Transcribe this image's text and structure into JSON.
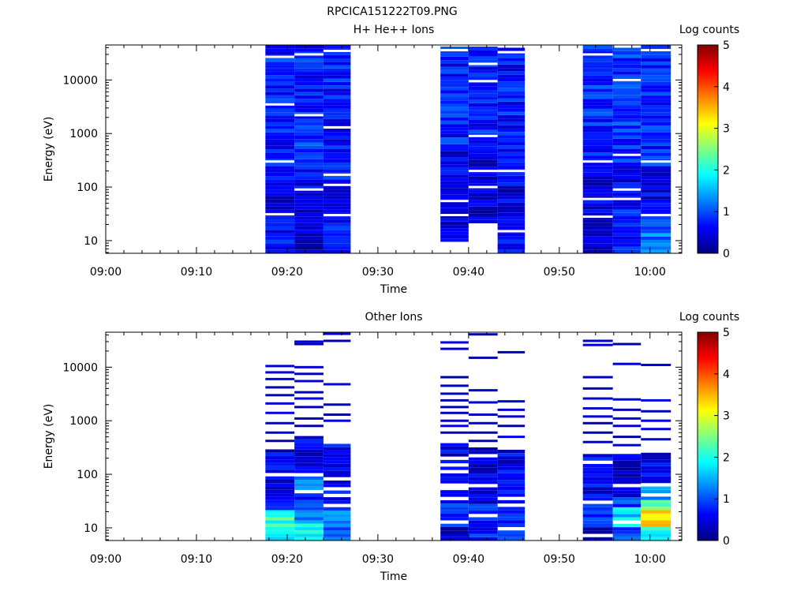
{
  "figure_title": "RPCICA151222T09.PNG",
  "colors": {
    "colormap": [
      "#00007f",
      "#0000ff",
      "#0080ff",
      "#00ffff",
      "#80ff80",
      "#ffff00",
      "#ff8000",
      "#ff0000",
      "#7f0000"
    ],
    "background": "#ffffff",
    "axis": "#000000"
  },
  "chart_data": [
    {
      "type": "heatmap",
      "title": "H+ He++ Ions",
      "xlabel": "Time",
      "ylabel": "Energy (eV)",
      "x_ticks": [
        "09:00",
        "09:10",
        "09:20",
        "09:30",
        "09:40",
        "09:50",
        "10:00"
      ],
      "x_range_minutes": [
        0,
        63.5
      ],
      "y_scale": "log",
      "y_range": [
        5.8,
        45000
      ],
      "y_ticks": [
        10,
        100,
        1000,
        10000
      ],
      "y_tick_labels": [
        "10",
        "100",
        "1000",
        "10000"
      ],
      "colorbar": {
        "label": "Log counts",
        "range": [
          0,
          5
        ],
        "ticks": [
          "0",
          "1",
          "2",
          "3",
          "4",
          "5"
        ]
      },
      "columns": [
        {
          "start_min": 17.6,
          "end_min": 20.8,
          "e_min": 5.8,
          "e_max": 45000,
          "bands": [
            {
              "lo": 5.8,
              "hi": 30,
              "level": 0.6
            },
            {
              "lo": 30,
              "hi": 100,
              "level": 0.4
            },
            {
              "lo": 100,
              "hi": 3000,
              "level": 0.7
            },
            {
              "lo": 3000,
              "hi": 45000,
              "level": 0.8
            }
          ],
          "gaps": [
            31,
            300,
            3500,
            27000
          ]
        },
        {
          "start_min": 20.8,
          "end_min": 24.0,
          "e_min": 5.8,
          "e_max": 45000,
          "bands": [
            {
              "lo": 5.8,
              "hi": 35,
              "level": 0.4
            },
            {
              "lo": 35,
              "hi": 150,
              "level": 0.5
            },
            {
              "lo": 150,
              "hi": 3000,
              "level": 0.8
            },
            {
              "lo": 3000,
              "hi": 45000,
              "level": 0.7
            }
          ],
          "gaps": [
            90,
            2200,
            30000
          ]
        },
        {
          "start_min": 24.0,
          "end_min": 27.0,
          "e_min": 5.8,
          "e_max": 45000,
          "bands": [
            {
              "lo": 5.8,
              "hi": 30,
              "level": 0.7
            },
            {
              "lo": 30,
              "hi": 130,
              "level": 0.5
            },
            {
              "lo": 130,
              "hi": 45000,
              "level": 0.7
            }
          ],
          "gaps": [
            30,
            110,
            170,
            1300,
            35000
          ]
        },
        {
          "start_min": 36.9,
          "end_min": 40.0,
          "e_min": 9.5,
          "e_max": 42000,
          "bands": [
            {
              "lo": 9.5,
              "hi": 60,
              "level": 0.5
            },
            {
              "lo": 60,
              "hi": 500,
              "level": 0.5
            },
            {
              "lo": 500,
              "hi": 42000,
              "level": 0.75
            }
          ],
          "gaps": [
            30,
            55,
            36000
          ]
        },
        {
          "start_min": 40.0,
          "end_min": 43.2,
          "e_min": 5.8,
          "e_max": 42000,
          "bands": [
            {
              "lo": 5.8,
              "hi": 22,
              "level": 0.0
            },
            {
              "lo": 22,
              "hi": 300,
              "level": 0.4
            },
            {
              "lo": 300,
              "hi": 42000,
              "level": 0.75
            }
          ],
          "gaps": [
            100,
            200,
            900,
            9500,
            20000
          ],
          "blank": [
            [
              5.8,
              22
            ]
          ]
        },
        {
          "start_min": 43.2,
          "end_min": 46.2,
          "e_min": 5.8,
          "e_max": 40000,
          "bands": [
            {
              "lo": 5.8,
              "hi": 60,
              "level": 0.55
            },
            {
              "lo": 60,
              "hi": 400,
              "level": 0.5
            },
            {
              "lo": 400,
              "hi": 40000,
              "level": 0.7
            }
          ],
          "gaps": [
            15,
            200,
            33000
          ]
        },
        {
          "start_min": 52.6,
          "end_min": 55.9,
          "e_min": 5.8,
          "e_max": 45000,
          "bands": [
            {
              "lo": 5.8,
              "hi": 25,
              "level": 0.5
            },
            {
              "lo": 25,
              "hi": 250,
              "level": 0.5
            },
            {
              "lo": 250,
              "hi": 45000,
              "level": 0.8
            }
          ],
          "gaps": [
            28,
            60,
            300,
            30000
          ]
        },
        {
          "start_min": 55.9,
          "end_min": 59.0,
          "e_min": 5.8,
          "e_max": 40000,
          "bands": [
            {
              "lo": 5.8,
              "hi": 40,
              "level": 0.7
            },
            {
              "lo": 40,
              "hi": 250,
              "level": 0.5
            },
            {
              "lo": 250,
              "hi": 40000,
              "level": 0.85
            }
          ],
          "gaps": [
            60,
            90,
            400,
            10000
          ]
        },
        {
          "start_min": 59.0,
          "end_min": 62.3,
          "e_min": 5.8,
          "e_max": 45000,
          "bands": [
            {
              "lo": 5.8,
              "hi": 30,
              "level": 1.2
            },
            {
              "lo": 30,
              "hi": 250,
              "level": 0.6
            },
            {
              "lo": 250,
              "hi": 45000,
              "level": 0.8
            }
          ],
          "gaps": [
            30,
            300,
            36000
          ]
        }
      ]
    },
    {
      "type": "heatmap",
      "title": "Other Ions",
      "xlabel": "Time",
      "ylabel": "Energy (eV)",
      "x_ticks": [
        "09:00",
        "09:10",
        "09:20",
        "09:30",
        "09:40",
        "09:50",
        "10:00"
      ],
      "x_range_minutes": [
        0,
        63.5
      ],
      "y_scale": "log",
      "y_range": [
        5.8,
        45000
      ],
      "y_ticks": [
        10,
        100,
        1000,
        10000
      ],
      "y_tick_labels": [
        "10",
        "100",
        "1000",
        "10000"
      ],
      "colorbar": {
        "label": "Log counts",
        "range": [
          0,
          5
        ],
        "ticks": [
          "0",
          "1",
          "2",
          "3",
          "4",
          "5"
        ]
      },
      "columns": [
        {
          "start_min": 17.6,
          "end_min": 20.8,
          "e_min": 5.8,
          "e_max": 11000,
          "bands": [
            {
              "lo": 5.8,
              "hi": 10,
              "level": 1.7
            },
            {
              "lo": 10,
              "hi": 20,
              "level": 2.1
            },
            {
              "lo": 20,
              "hi": 35,
              "level": 0.9
            },
            {
              "lo": 35,
              "hi": 300,
              "level": 0.5
            }
          ],
          "dense_max": 300,
          "sparse": [
            420,
            600,
            900,
            1400,
            2100,
            3000,
            4200,
            6000,
            8000,
            10500
          ]
        },
        {
          "start_min": 20.8,
          "end_min": 24.0,
          "e_min": 5.8,
          "e_max": 30000,
          "bands": [
            {
              "lo": 5.8,
              "hi": 12,
              "level": 1.8
            },
            {
              "lo": 12,
              "hi": 22,
              "level": 1.3
            },
            {
              "lo": 22,
              "hi": 45,
              "level": 0.8
            },
            {
              "lo": 45,
              "hi": 100,
              "level": 1.4
            },
            {
              "lo": 100,
              "hi": 500,
              "level": 0.5
            }
          ],
          "dense_max": 500,
          "sparse": [
            800,
            1100,
            1800,
            2600,
            3400,
            5500,
            7500,
            10000,
            27000,
            30000
          ]
        },
        {
          "start_min": 24.0,
          "end_min": 27.0,
          "e_min": 5.8,
          "e_max": 42000,
          "bands": [
            {
              "lo": 5.8,
              "hi": 20,
              "level": 1.2
            },
            {
              "lo": 20,
              "hi": 60,
              "level": 0.7
            },
            {
              "lo": 60,
              "hi": 700,
              "level": 0.6
            }
          ],
          "dense_max": 700,
          "sparse": [
            1000,
            1300,
            2000,
            4800,
            31000,
            42000
          ]
        },
        {
          "start_min": 36.9,
          "end_min": 40.0,
          "e_min": 5.8,
          "e_max": 29000,
          "bands": [
            {
              "lo": 5.8,
              "hi": 10,
              "level": 0.3
            },
            {
              "lo": 10,
              "hi": 50,
              "level": 0.8
            },
            {
              "lo": 50,
              "hi": 400,
              "level": 0.55
            }
          ],
          "dense_max": 400,
          "sparse": [
            600,
            800,
            1000,
            1400,
            1800,
            2400,
            3200,
            4500,
            6500,
            22000,
            29000
          ]
        },
        {
          "start_min": 40.0,
          "end_min": 43.2,
          "e_min": 5.8,
          "e_max": 41000,
          "bands": [
            {
              "lo": 5.8,
              "hi": 30,
              "level": 0.7
            },
            {
              "lo": 30,
              "hi": 120,
              "level": 0.45
            },
            {
              "lo": 120,
              "hi": 300,
              "level": 0.5
            }
          ],
          "dense_max": 300,
          "sparse": [
            420,
            600,
            900,
            1300,
            2200,
            3700,
            15000,
            41000
          ]
        },
        {
          "start_min": 43.2,
          "end_min": 46.2,
          "e_min": 5.8,
          "e_max": 19000,
          "bands": [
            {
              "lo": 5.8,
              "hi": 10,
              "level": 1.2
            },
            {
              "lo": 10,
              "hi": 25,
              "level": 0.6
            },
            {
              "lo": 25,
              "hi": 300,
              "level": 0.55
            }
          ],
          "dense_max": 300,
          "sparse": [
            500,
            800,
            1200,
            1600,
            2300,
            19000
          ]
        },
        {
          "start_min": 52.6,
          "end_min": 55.9,
          "e_min": 5.8,
          "e_max": 31000,
          "bands": [
            {
              "lo": 5.8,
              "hi": 10,
              "level": 0.4
            },
            {
              "lo": 10,
              "hi": 35,
              "level": 0.9
            },
            {
              "lo": 35,
              "hi": 250,
              "level": 0.6
            }
          ],
          "dense_max": 250,
          "sparse": [
            400,
            600,
            900,
            1200,
            1700,
            2600,
            4000,
            6500,
            26000,
            31000
          ]
        },
        {
          "start_min": 55.9,
          "end_min": 59.0,
          "e_min": 5.8,
          "e_max": 27000,
          "bands": [
            {
              "lo": 5.8,
              "hi": 10,
              "level": 1.0
            },
            {
              "lo": 10,
              "hi": 25,
              "level": 1.7
            },
            {
              "lo": 25,
              "hi": 40,
              "level": 0.9
            },
            {
              "lo": 40,
              "hi": 250,
              "level": 0.5
            }
          ],
          "dense_max": 250,
          "sparse": [
            350,
            500,
            800,
            1100,
            1600,
            2500,
            11500,
            27000
          ]
        },
        {
          "start_min": 59.0,
          "end_min": 62.3,
          "e_min": 5.8,
          "e_max": 11000,
          "bands": [
            {
              "lo": 5.8,
              "hi": 10,
              "level": 1.9
            },
            {
              "lo": 10,
              "hi": 20,
              "level": 3.2
            },
            {
              "lo": 20,
              "hi": 35,
              "level": 2.4
            },
            {
              "lo": 35,
              "hi": 70,
              "level": 1.3
            },
            {
              "lo": 70,
              "hi": 300,
              "level": 0.5
            }
          ],
          "dense_max": 300,
          "sparse": [
            450,
            700,
            1000,
            1500,
            2400,
            11000
          ]
        }
      ]
    }
  ]
}
